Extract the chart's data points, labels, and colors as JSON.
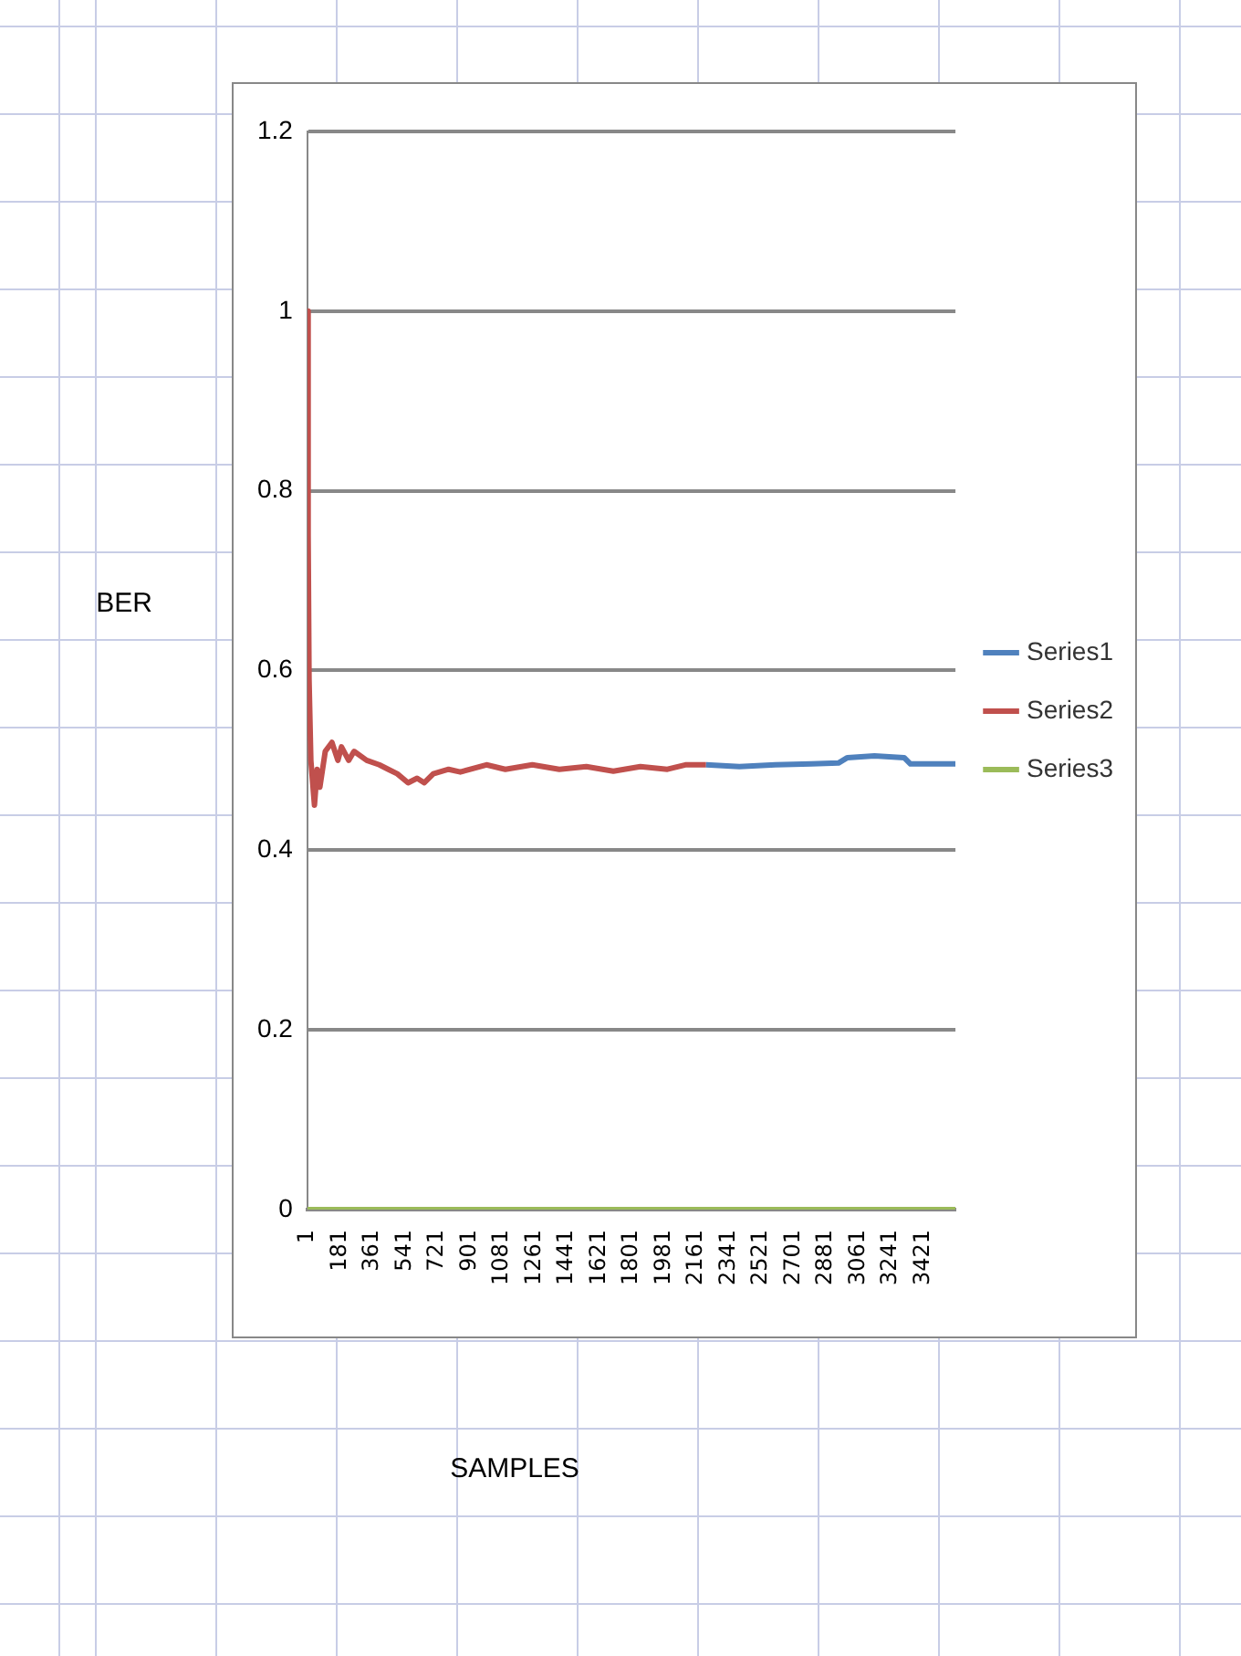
{
  "chart_data": {
    "type": "line",
    "annotations": [
      "SAMPLES"
    ],
    "ylabel": "BER",
    "xlim": [
      1,
      3600
    ],
    "xticks": [
      1,
      181,
      361,
      541,
      721,
      901,
      1081,
      1261,
      1441,
      1621,
      1801,
      1981,
      2161,
      2341,
      2521,
      2701,
      2881,
      3061,
      3241,
      3421
    ],
    "ylim": [
      0,
      1.2
    ],
    "yticks": [
      0,
      0.2,
      0.4,
      0.6,
      0.8,
      1,
      1.2
    ],
    "grid": "y",
    "legend": "right",
    "marker": "none",
    "line_style": "solid",
    "series": [
      {
        "name": "Series1",
        "color": "#4f81bd",
        "x": [
          2215,
          2400,
          2600,
          2800,
          2950,
          3000,
          3150,
          3315,
          3350,
          3600
        ],
        "values": [
          0.495,
          0.493,
          0.495,
          0.496,
          0.497,
          0.503,
          0.505,
          0.503,
          0.496,
          0.496
        ]
      },
      {
        "name": "Series2",
        "color": "#c0504d",
        "x": [
          1,
          5,
          10,
          20,
          40,
          55,
          70,
          100,
          137,
          170,
          190,
          230,
          260,
          330,
          400,
          450,
          500,
          560,
          610,
          650,
          700,
          785,
          850,
          995,
          1100,
          1250,
          1400,
          1550,
          1700,
          1850,
          2000,
          2100,
          2215
        ],
        "values": [
          1.0,
          0.75,
          0.59,
          0.5,
          0.45,
          0.49,
          0.47,
          0.51,
          0.52,
          0.5,
          0.515,
          0.5,
          0.51,
          0.5,
          0.495,
          0.49,
          0.485,
          0.475,
          0.48,
          0.475,
          0.485,
          0.49,
          0.487,
          0.495,
          0.49,
          0.495,
          0.49,
          0.493,
          0.488,
          0.493,
          0.49,
          0.495,
          0.495
        ]
      },
      {
        "name": "Series3",
        "color": "#9bbb59",
        "x": [
          1,
          3600
        ],
        "values": [
          0,
          0
        ]
      }
    ]
  }
}
